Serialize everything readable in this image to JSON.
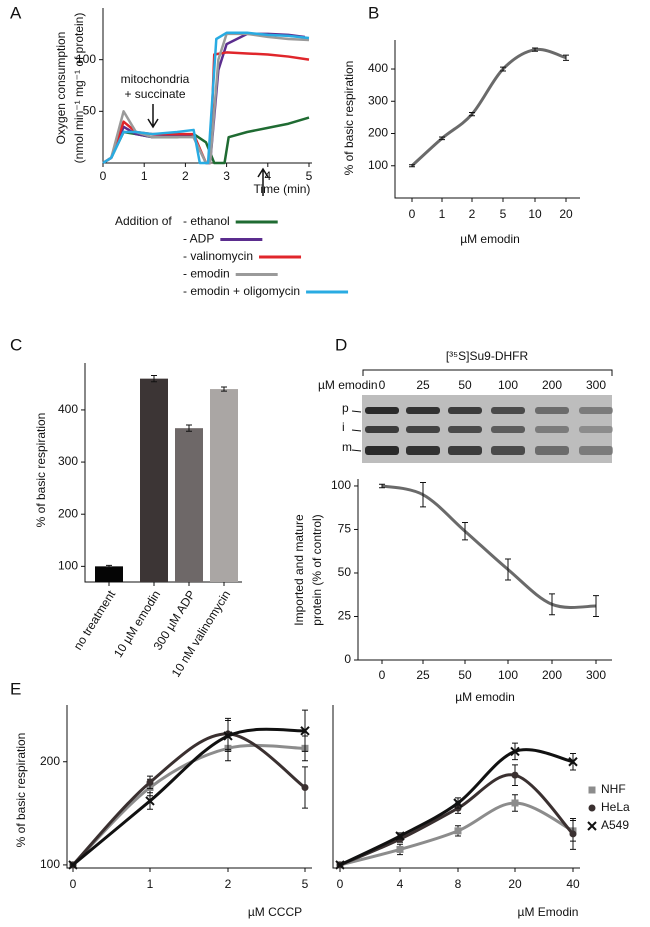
{
  "chart_data": [
    {
      "type": "line",
      "panel": "A",
      "ylabel": [
        "Oxygen consumption",
        "(nmol min⁻¹ mg⁻¹ of protein)"
      ],
      "xlabel": "Time (min)",
      "xlim": [
        0,
        5
      ],
      "xticks": [
        0,
        1,
        2,
        3,
        4,
        5
      ],
      "ylim": [
        0,
        150
      ],
      "yticks": [
        50,
        100
      ],
      "annotation": [
        "mitochondria",
        "+ succinate"
      ],
      "legend_title": "Addition of",
      "series": [
        {
          "name": "- ethanol",
          "color": "#1f6b32",
          "x": [
            0,
            0.2,
            0.5,
            0.8,
            1.2,
            1.8,
            2.2,
            2.5,
            2.7,
            2.85,
            2.95,
            3.05,
            3.5,
            4,
            4.5,
            5
          ],
          "values": [
            0,
            5,
            30,
            28,
            25,
            25,
            28,
            20,
            0,
            0,
            0,
            25,
            30,
            34,
            38,
            44
          ]
        },
        {
          "name": "- ADP",
          "color": "#5b2d8e",
          "x": [
            0,
            0.2,
            0.5,
            0.8,
            1.2,
            1.8,
            2.2,
            2.5,
            2.6,
            2.8,
            3.0,
            3.5,
            4,
            4.5,
            4.9
          ],
          "values": [
            0,
            5,
            35,
            28,
            25,
            27,
            25,
            0,
            0,
            90,
            115,
            125,
            125,
            124,
            122
          ]
        },
        {
          "name": "- valinomycin",
          "color": "#e0262b",
          "x": [
            0,
            0.2,
            0.5,
            0.8,
            1.2,
            1.8,
            2.2,
            2.5,
            2.6,
            2.7,
            3,
            3.5,
            4,
            4.5,
            5
          ],
          "values": [
            0,
            5,
            40,
            30,
            28,
            28,
            28,
            0,
            0,
            105,
            107,
            106,
            105,
            103,
            100
          ]
        },
        {
          "name": "- emodin",
          "color": "#9a9a9a",
          "x": [
            0,
            0.2,
            0.5,
            0.8,
            1.2,
            1.8,
            2.2,
            2.5,
            2.6,
            2.8,
            3,
            3.5,
            4,
            4.5,
            5
          ],
          "values": [
            0,
            5,
            50,
            30,
            25,
            25,
            25,
            0,
            0,
            100,
            125,
            125,
            122,
            120,
            119
          ]
        },
        {
          "name": "- emodin + oligomycin",
          "color": "#29abe2",
          "x": [
            0,
            0.2,
            0.5,
            0.8,
            1.2,
            1.8,
            2.2,
            2.35,
            2.55,
            2.75,
            3,
            3.5,
            4,
            4.5,
            5
          ],
          "values": [
            0,
            5,
            30,
            30,
            28,
            30,
            32,
            0,
            0,
            120,
            126,
            126,
            124,
            123,
            121
          ]
        }
      ]
    },
    {
      "type": "line",
      "panel": "B",
      "ylabel": "% of basic respiration",
      "xlabel": "µM emodin",
      "categories": [
        "0",
        "1",
        "2",
        "5",
        "10",
        "20"
      ],
      "values": [
        100,
        185,
        260,
        400,
        460,
        435
      ],
      "errors": [
        3,
        4,
        5,
        6,
        5,
        8
      ],
      "color": "#6a6a6a",
      "ylim": [
        0,
        490
      ],
      "yticks": [
        100,
        200,
        300,
        400
      ]
    },
    {
      "type": "bar",
      "panel": "C",
      "ylabel": "% of basic respiration",
      "categories": [
        "no treatment",
        "10 µM emodin",
        "300 µM ADP",
        "10 nM valinomycin"
      ],
      "values": [
        100,
        460,
        365,
        440
      ],
      "errors": [
        2,
        6,
        6,
        4
      ],
      "colors": [
        "#050505",
        "#3c3535",
        "#6e6868",
        "#aaa6a4"
      ],
      "ylim": [
        70,
        490
      ],
      "yticks": [
        100,
        200,
        300,
        400
      ]
    },
    {
      "type": "line",
      "panel": "D",
      "gel_title": "[³⁵S]Su9-DHFR",
      "gel_xlabel": "µM emodin",
      "lanes": [
        "0",
        "25",
        "50",
        "100",
        "200",
        "300"
      ],
      "bands": [
        "p",
        "i",
        "m"
      ],
      "ylabel": [
        "Imported and mature",
        "protein (% of control)"
      ],
      "xlabel": "µM emodin",
      "categories": [
        "0",
        "25",
        "50",
        "100",
        "200",
        "300"
      ],
      "values": [
        100,
        95,
        74,
        52,
        32,
        31
      ],
      "errors": [
        1,
        7,
        5,
        6,
        6,
        6
      ],
      "color": "#6a6a6a",
      "ylim": [
        0,
        104
      ],
      "yticks": [
        0,
        25,
        50,
        75,
        100
      ]
    },
    {
      "type": "line",
      "panel": "E",
      "ylabel": "% of basic respiration",
      "xlabel": "µM CCCP",
      "categories": [
        "0",
        "1",
        "2",
        "5"
      ],
      "ylim": [
        97,
        255
      ],
      "yticks": [
        100,
        200
      ],
      "series": [
        {
          "color": "#8c8c8c",
          "marker": "square",
          "values": [
            100,
            175,
            213,
            213
          ],
          "errors": [
            0,
            8,
            12,
            12
          ]
        },
        {
          "color": "#3a3030",
          "marker": "circle",
          "values": [
            100,
            180,
            227,
            175
          ],
          "errors": [
            0,
            6,
            15,
            20
          ]
        },
        {
          "color": "#111111",
          "marker": "x",
          "values": [
            100,
            162,
            225,
            230
          ],
          "errors": [
            0,
            8,
            15,
            20
          ]
        }
      ]
    },
    {
      "type": "line",
      "xlabel": "µM Emodin",
      "categories": [
        "0",
        "4",
        "8",
        "20",
        "40"
      ],
      "ylim": [
        97,
        255
      ],
      "series": [
        {
          "name": "NHF",
          "color": "#8c8c8c",
          "marker": "square",
          "values": [
            100,
            115,
            133,
            160,
            133
          ],
          "errors": [
            0,
            5,
            5,
            8,
            10
          ]
        },
        {
          "name": "HeLa",
          "color": "#3a3030",
          "marker": "circle",
          "values": [
            100,
            125,
            155,
            187,
            130
          ],
          "errors": [
            0,
            3,
            5,
            10,
            15
          ]
        },
        {
          "name": "A549",
          "color": "#111111",
          "marker": "x",
          "values": [
            100,
            128,
            160,
            210,
            200
          ],
          "errors": [
            0,
            3,
            5,
            8,
            8
          ]
        }
      ]
    }
  ]
}
